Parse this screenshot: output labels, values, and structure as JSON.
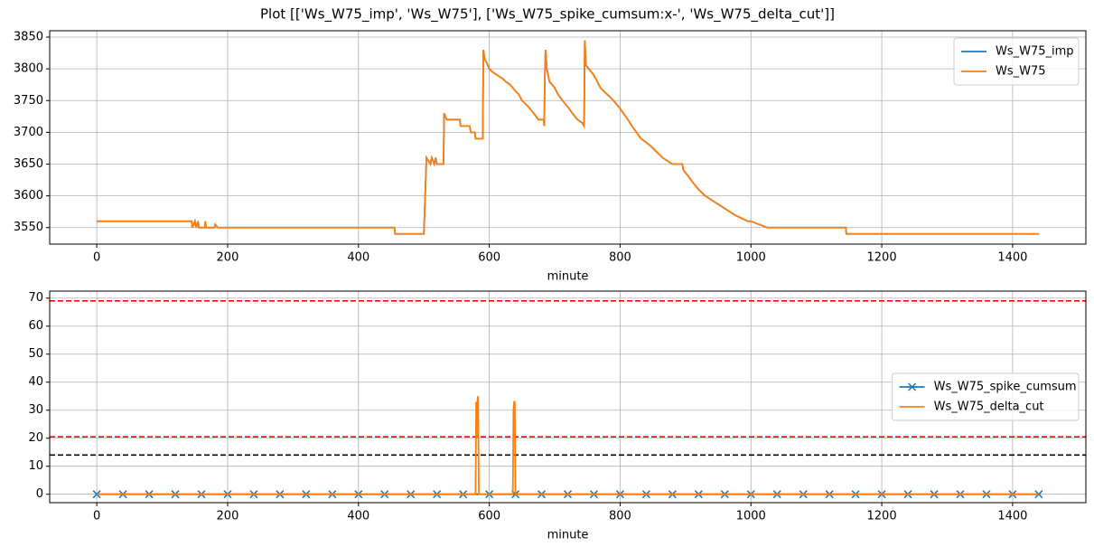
{
  "title": "Plot [['Ws_W75_imp', 'Ws_W75'], ['Ws_W75_spike_cumsum:x-', 'Ws_W75_delta_cut']]",
  "chart_data": [
    {
      "type": "line",
      "xlabel": "minute",
      "xlim": [
        -72,
        1512
      ],
      "xticks": [
        0,
        200,
        400,
        600,
        800,
        1000,
        1200,
        1400
      ],
      "ylim": [
        3524,
        3860
      ],
      "yticks": [
        3550,
        3600,
        3650,
        3700,
        3750,
        3800,
        3850
      ],
      "grid": true,
      "legend": "upper right",
      "x": [
        0,
        145,
        146,
        150,
        152,
        155,
        156,
        165,
        166,
        167,
        180,
        181,
        185,
        455,
        456,
        500,
        502,
        504,
        510,
        512,
        516,
        518,
        520,
        530,
        531,
        535,
        555,
        556,
        570,
        572,
        578,
        579,
        590,
        591,
        593,
        596,
        600,
        605,
        612,
        620,
        625,
        632,
        640,
        645,
        650,
        655,
        660,
        668,
        675,
        683,
        684,
        685,
        686,
        688,
        692,
        700,
        705,
        712,
        720,
        727,
        735,
        742,
        745,
        746,
        748,
        752,
        760,
        770,
        780,
        790,
        798,
        805,
        812,
        818,
        825,
        832,
        845,
        855,
        865,
        880,
        895,
        897,
        905,
        912,
        920,
        930,
        945,
        960,
        975,
        995,
        1000,
        1025,
        1145,
        1146,
        1440
      ],
      "series": [
        {
          "name": "Ws_W75_imp",
          "color": "#1f77b4",
          "values": [
            3560,
            3560,
            3550,
            3560,
            3550,
            3560,
            3550,
            3550,
            3560,
            3550,
            3550,
            3555,
            3550,
            3550,
            3540,
            3540,
            3600,
            3660,
            3650,
            3660,
            3650,
            3660,
            3650,
            3650,
            3730,
            3720,
            3720,
            3710,
            3710,
            3700,
            3700,
            3690,
            3690,
            3830,
            3815,
            3810,
            3800,
            3795,
            3790,
            3785,
            3780,
            3775,
            3765,
            3760,
            3750,
            3745,
            3740,
            3730,
            3720,
            3720,
            3710,
            3790,
            3830,
            3800,
            3780,
            3770,
            3760,
            3750,
            3740,
            3730,
            3720,
            3715,
            3710,
            3845,
            3805,
            3800,
            3790,
            3770,
            3760,
            3750,
            3740,
            3730,
            3720,
            3710,
            3700,
            3690,
            3680,
            3670,
            3660,
            3650,
            3650,
            3640,
            3630,
            3620,
            3610,
            3600,
            3590,
            3580,
            3570,
            3560,
            3560,
            3550,
            3550,
            3540,
            3540
          ]
        },
        {
          "name": "Ws_W75",
          "color": "#ff7f0e",
          "values": [
            3560,
            3560,
            3550,
            3560,
            3550,
            3560,
            3550,
            3550,
            3560,
            3550,
            3550,
            3555,
            3550,
            3550,
            3540,
            3540,
            3600,
            3660,
            3650,
            3660,
            3650,
            3660,
            3650,
            3650,
            3730,
            3720,
            3720,
            3710,
            3710,
            3700,
            3700,
            3690,
            3690,
            3830,
            3815,
            3810,
            3800,
            3795,
            3790,
            3785,
            3780,
            3775,
            3765,
            3760,
            3750,
            3745,
            3740,
            3730,
            3720,
            3720,
            3710,
            3790,
            3830,
            3800,
            3780,
            3770,
            3760,
            3750,
            3740,
            3730,
            3720,
            3715,
            3710,
            3845,
            3805,
            3800,
            3790,
            3770,
            3760,
            3750,
            3740,
            3730,
            3720,
            3710,
            3700,
            3690,
            3680,
            3670,
            3660,
            3650,
            3650,
            3640,
            3630,
            3620,
            3610,
            3600,
            3590,
            3580,
            3570,
            3560,
            3560,
            3550,
            3550,
            3540,
            3540
          ]
        }
      ]
    },
    {
      "type": "line",
      "xlabel": "minute",
      "xlim": [
        -72,
        1512
      ],
      "xticks": [
        0,
        200,
        400,
        600,
        800,
        1000,
        1200,
        1400
      ],
      "ylim": [
        -3,
        72.5
      ],
      "yticks": [
        0,
        10,
        20,
        30,
        40,
        50,
        60,
        70
      ],
      "grid": true,
      "legend": "center right",
      "hlines": [
        {
          "value": 69,
          "color": "#ff0000"
        },
        {
          "value": 20.5,
          "color": "#ff0000"
        },
        {
          "value": 14,
          "color": "#000000"
        }
      ],
      "series": [
        {
          "name": "Ws_W75_spike_cumsum",
          "color": "#1f77b4",
          "marker": "x",
          "x": [
            0,
            40,
            80,
            120,
            160,
            200,
            240,
            280,
            320,
            360,
            400,
            440,
            480,
            520,
            560,
            600,
            640,
            680,
            720,
            760,
            800,
            840,
            880,
            920,
            960,
            1000,
            1040,
            1080,
            1120,
            1160,
            1200,
            1240,
            1280,
            1320,
            1360,
            1400,
            1440
          ],
          "values": [
            0,
            0,
            0,
            0,
            0,
            0,
            0,
            0,
            0,
            0,
            0,
            0,
            0,
            0,
            0,
            0,
            0,
            0,
            0,
            0,
            0,
            0,
            0,
            0,
            0,
            0,
            0,
            0,
            0,
            0,
            0,
            0,
            0,
            0,
            0,
            0,
            0
          ]
        },
        {
          "name": "Ws_W75_delta_cut",
          "color": "#ff7f0e",
          "x": [
            0,
            579,
            580,
            581,
            582,
            583,
            584,
            636,
            637,
            638,
            639,
            640,
            1440
          ],
          "values": [
            0,
            0,
            33,
            20,
            34,
            35,
            0,
            0,
            30,
            33,
            33,
            0,
            0
          ]
        }
      ]
    }
  ]
}
